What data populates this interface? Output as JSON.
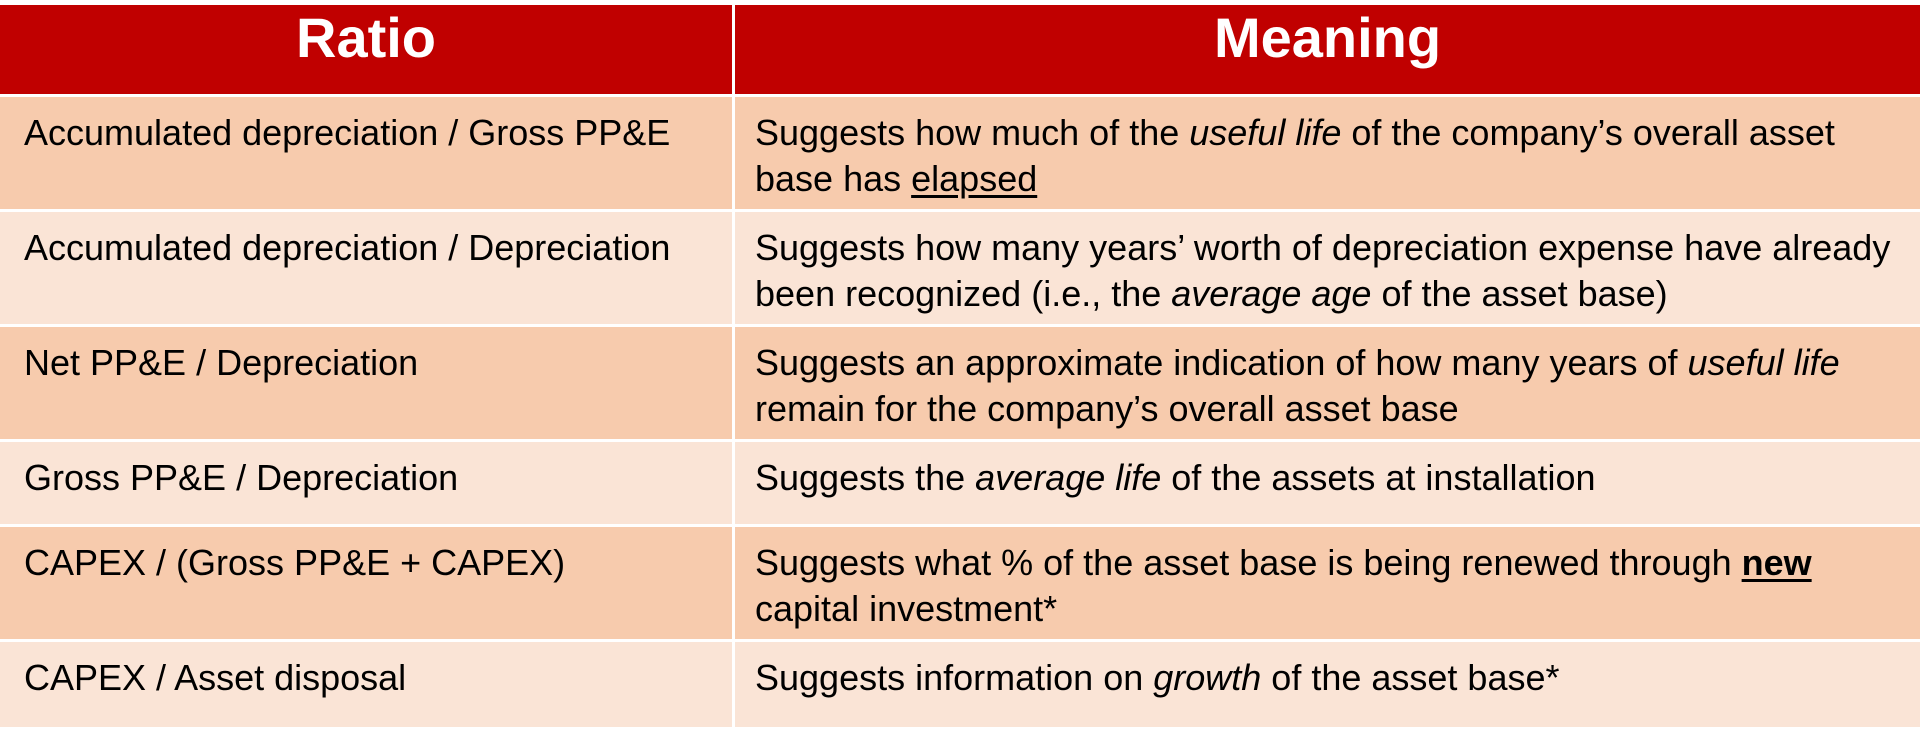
{
  "header": {
    "ratio": "Ratio",
    "meaning": "Meaning"
  },
  "rows": [
    {
      "ratio": "Accumulated depreciation / Gross PP&E",
      "meaning": {
        "a": "Suggests how much of the ",
        "b": "useful life",
        "c": " of the company’s overall asset base has ",
        "d": "elapsed"
      }
    },
    {
      "ratio": "Accumulated depreciation / Depreciation",
      "meaning": {
        "a": "Suggests how many years’ worth of depreciation expense have already been recognized (i.e., the ",
        "b": "average age",
        "c": " of the asset base)"
      }
    },
    {
      "ratio": "Net PP&E / Depreciation",
      "meaning": {
        "a": "Suggests an approximate indication of how many years of ",
        "b": "useful life",
        "c": " remain for the company’s overall asset base"
      }
    },
    {
      "ratio": "Gross PP&E / Depreciation",
      "meaning": {
        "a": "Suggests the ",
        "b": "average life",
        "c": " of the assets at installation"
      }
    },
    {
      "ratio": "CAPEX / (Gross PP&E + CAPEX)",
      "meaning": {
        "a": "Suggests what % of the asset base is being renewed through ",
        "b": "new",
        "c": " capital investment*"
      }
    },
    {
      "ratio": "CAPEX / Asset disposal",
      "meaning": {
        "a": "Suggests information on ",
        "b": "growth",
        "c": " of the asset base*"
      }
    }
  ],
  "colors": {
    "header_bg": "#c00000",
    "header_text": "#ffffff",
    "row_dark": "#f7cbad",
    "row_light": "#fae4d6"
  }
}
